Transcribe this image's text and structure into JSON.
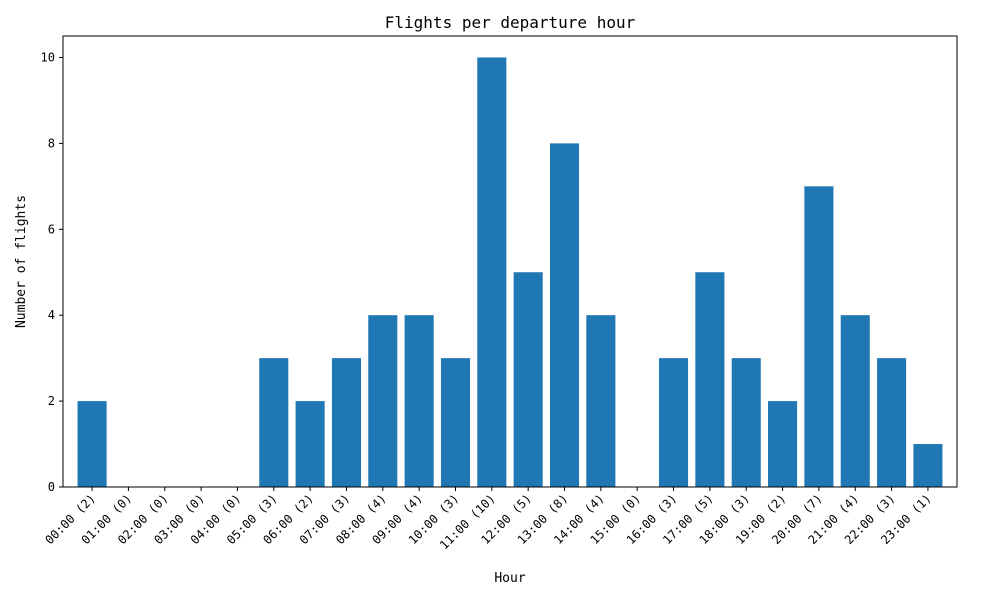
{
  "chart_data": {
    "type": "bar",
    "title": "Flights per departure hour",
    "xlabel": "Hour",
    "ylabel": "Number of flights",
    "categories": [
      "00:00 (2)",
      "01:00 (0)",
      "02:00 (0)",
      "03:00 (0)",
      "04:00 (0)",
      "05:00 (3)",
      "06:00 (2)",
      "07:00 (3)",
      "08:00 (4)",
      "09:00 (4)",
      "10:00 (3)",
      "11:00 (10)",
      "12:00 (5)",
      "13:00 (8)",
      "14:00 (4)",
      "15:00 (0)",
      "16:00 (3)",
      "17:00 (5)",
      "18:00 (3)",
      "19:00 (2)",
      "20:00 (7)",
      "21:00 (4)",
      "22:00 (3)",
      "23:00 (1)"
    ],
    "values": [
      2,
      0,
      0,
      0,
      0,
      3,
      2,
      3,
      4,
      4,
      3,
      10,
      5,
      8,
      4,
      0,
      3,
      5,
      3,
      2,
      7,
      4,
      3,
      1
    ],
    "ylim": [
      0,
      10.5
    ],
    "yticks": [
      0,
      2,
      4,
      6,
      8,
      10
    ],
    "bar_color": "#1f77b4",
    "grid": false,
    "legend": false
  }
}
